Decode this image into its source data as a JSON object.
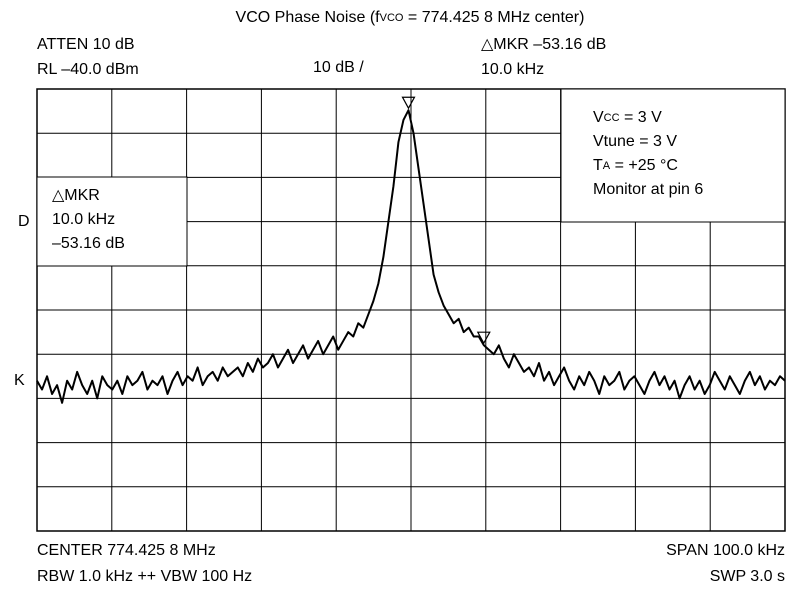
{
  "chart_data": {
    "type": "line",
    "title": [
      "VCO Phase Noise (f",
      "VCO",
      " = 774.425 8 MHz center)"
    ],
    "header": {
      "atten": "ATTEN 10 dB",
      "rl": "RL –40.0 dBm",
      "scale": "10 dB /",
      "marker_delta": "△MKR  –53.16 dB",
      "marker_freq": "10.0 kHz"
    },
    "marker_box": [
      "△MKR",
      "10.0 kHz",
      "–53.16 dB"
    ],
    "side_labels": [
      "D",
      "K"
    ],
    "conditions": [
      [
        "V",
        "CC",
        " = 3 V"
      ],
      [
        "Vtune = 3 V"
      ],
      [
        "T",
        "A",
        " = +25 °C"
      ],
      [
        "Monitor at pin 6"
      ]
    ],
    "footer": {
      "center": "CENTER 774.425 8 MHz",
      "rbw": "RBW 1.0 kHz  ++ VBW 100 Hz",
      "span": "SPAN 100.0 kHz",
      "swp": "SWP 3.0 s"
    },
    "color": "#000000",
    "ylim": [
      -140,
      -40
    ],
    "values": [
      -106,
      -108,
      -105,
      -109,
      -107,
      -111,
      -106,
      -108,
      -104,
      -107,
      -109,
      -106,
      -110,
      -105,
      -107,
      -108,
      -106,
      -109,
      -105,
      -107,
      -106,
      -104,
      -108,
      -106,
      -107,
      -105,
      -109,
      -106,
      -104,
      -107,
      -105,
      -106,
      -103,
      -107,
      -105,
      -104,
      -106,
      -103,
      -105,
      -104,
      -103,
      -105,
      -102,
      -104,
      -101,
      -103,
      -102,
      -100,
      -103,
      -101,
      -99,
      -102,
      -100,
      -98,
      -101,
      -99,
      -97,
      -100,
      -98,
      -96,
      -99,
      -97,
      -95,
      -96,
      -93,
      -94,
      -91,
      -88,
      -84,
      -78,
      -70,
      -62,
      -52,
      -47,
      -44.8,
      -50,
      -58,
      -66,
      -74,
      -82,
      -86,
      -89,
      -91,
      -93,
      -92,
      -95,
      -94,
      -96,
      -96,
      -97.96,
      -99,
      -100,
      -98,
      -101,
      -103,
      -100,
      -102,
      -104,
      -103,
      -105,
      -102,
      -106,
      -104,
      -107,
      -105,
      -103,
      -106,
      -108,
      -105,
      -107,
      -104,
      -106,
      -109,
      -105,
      -107,
      -106,
      -104,
      -108,
      -106,
      -105,
      -107,
      -109,
      -106,
      -104,
      -107,
      -105,
      -108,
      -106,
      -110,
      -107,
      -105,
      -108,
      -106,
      -109,
      -107,
      -104,
      -106,
      -108,
      -105,
      -107,
      -109,
      -106,
      -104,
      -107,
      -105,
      -108,
      -106,
      -107,
      -105,
      -106
    ]
  }
}
